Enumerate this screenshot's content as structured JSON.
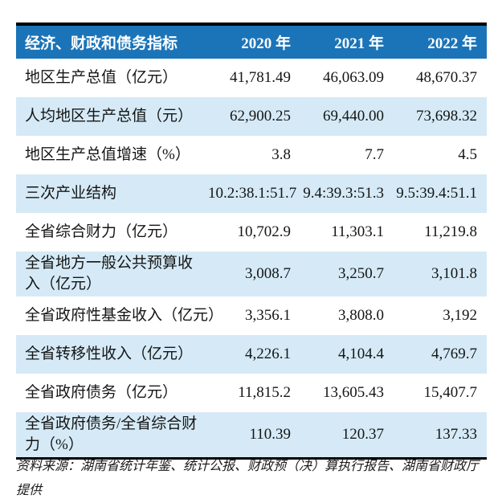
{
  "table": {
    "columns": [
      "经济、财政和债务指标",
      "2020 年",
      "2021 年",
      "2022 年"
    ],
    "rows": [
      {
        "label": "地区生产总值（亿元）",
        "values": [
          "41,781.49",
          "46,063.09",
          "48,670.37"
        ]
      },
      {
        "label": "人均地区生产总值（元）",
        "values": [
          "62,900.25",
          "69,440.00",
          "73,698.32"
        ]
      },
      {
        "label": "地区生产总值增速（%）",
        "values": [
          "3.8",
          "7.7",
          "4.5"
        ]
      },
      {
        "label": "三次产业结构",
        "values": [
          "10.2:38.1:51.7",
          "9.4:39.3:51.3",
          "9.5:39.4:51.1"
        ]
      },
      {
        "label": "全省综合财力（亿元）",
        "values": [
          "10,702.9",
          "11,303.1",
          "11,219.8"
        ]
      },
      {
        "label": "全省地方一般公共预算收\n入（亿元）",
        "values": [
          "3,008.7",
          "3,250.7",
          "3,101.8"
        ]
      },
      {
        "label": "全省政府性基金收入（亿元）",
        "values": [
          "3,356.1",
          "3,808.0",
          "3,192"
        ]
      },
      {
        "label": "全省转移性收入（亿元）",
        "values": [
          "4,226.1",
          "4,104.4",
          "4,769.7"
        ]
      },
      {
        "label": "全省政府债务（亿元）",
        "values": [
          "11,815.2",
          "13,605.43",
          "15,407.7"
        ]
      },
      {
        "label": "全省政府债务/全省综合财\n力（%）",
        "values": [
          "110.39",
          "120.37",
          "137.33"
        ]
      }
    ]
  },
  "source_note": "资料来源：湖南省统计年鉴、统计公报、财政预（决）算执行报告、湖南省财政厅提供",
  "colors": {
    "header_bg": "#1b74b8",
    "row_alt_bg": "#d5eaf6",
    "rule": "#000000"
  }
}
